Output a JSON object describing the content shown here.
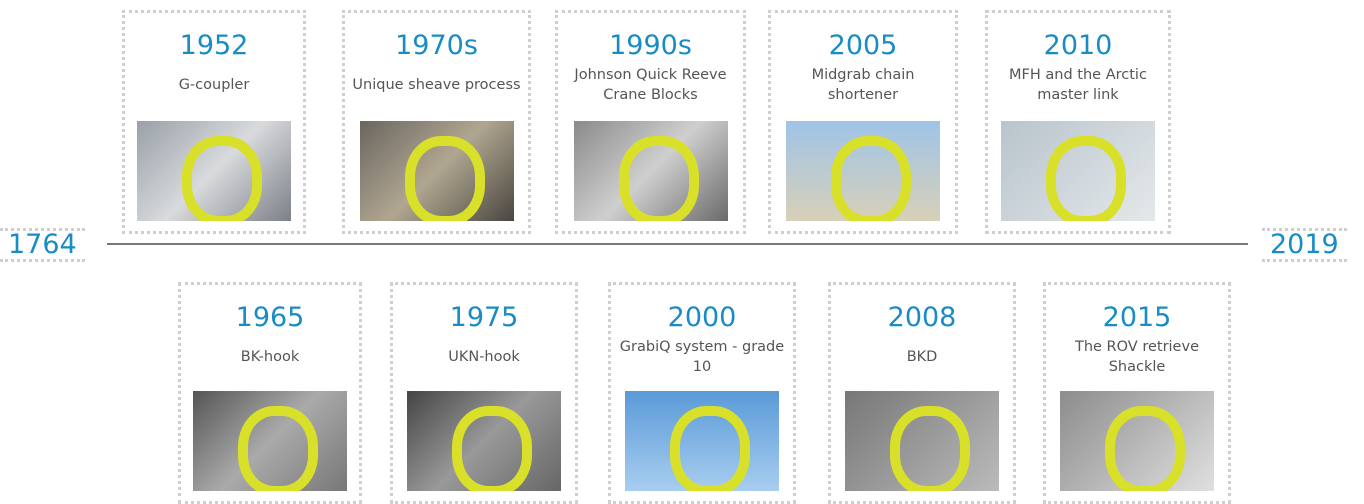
{
  "timeline": {
    "start": "1764",
    "end": "2019",
    "top": [
      {
        "year": "1952",
        "label": "G-coupler"
      },
      {
        "year": "1970s",
        "label": "Unique sheave process"
      },
      {
        "year": "1990s",
        "label": "Johnson Quick Reeve Crane Blocks"
      },
      {
        "year": "2005",
        "label": "Midgrab chain shortener"
      },
      {
        "year": "2010",
        "label": "MFH and the Arctic master link"
      }
    ],
    "bottom": [
      {
        "year": "1965",
        "label": "BK-hook"
      },
      {
        "year": "1975",
        "label": "UKN-hook"
      },
      {
        "year": "2000",
        "label": "GrabiQ system - grade 10"
      },
      {
        "year": "2008",
        "label": "BKD"
      },
      {
        "year": "2015",
        "label": "The ROV retrieve Shackle"
      }
    ]
  }
}
